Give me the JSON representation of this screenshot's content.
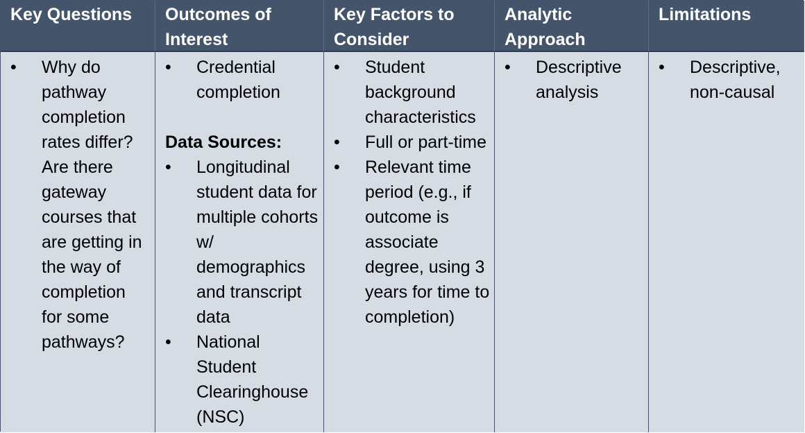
{
  "headers": [
    "Key Questions",
    "Outcomes of Interest",
    "Key Factors to Consider",
    "Analytic Approach",
    "Limitations"
  ],
  "key_questions": {
    "items": [
      "Why do pathway completion rates differ? Are there gateway courses that are getting in the way of completion for some pathways?"
    ]
  },
  "outcomes": {
    "items": [
      "Credential completion"
    ],
    "data_sources_label": "Data Sources:",
    "data_sources": [
      "Longitudinal student data for multiple cohorts w/ demographics and transcript data",
      "National Student Clearinghouse (NSC)"
    ]
  },
  "key_factors": {
    "items": [
      "Student background characteristics",
      "Full or part-time",
      "Relevant time period (e.g., if outcome is associate degree, using 3 years for time to completion)"
    ]
  },
  "analytic_approach": {
    "items": [
      "Descriptive analysis"
    ]
  },
  "limitations": {
    "items": [
      "Descriptive, non-causal"
    ]
  }
}
